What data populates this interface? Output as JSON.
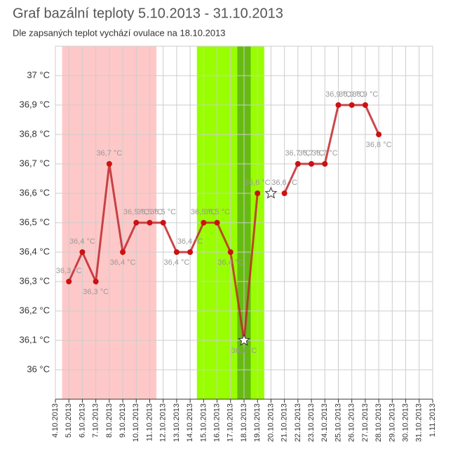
{
  "chart_data": {
    "type": "line",
    "title": "Graf bazální teploty 5.10.2013 - 31.10.2013",
    "subtitle": "Dle zapsaných teplot vychází ovulace na 18.10.2013",
    "categories": [
      "4.10.2013",
      "5.10.2013",
      "6.10.2013",
      "7.10.2013",
      "8.10.2013",
      "9.10.2013",
      "10.10.2013",
      "11.10.2013",
      "12.10.2013",
      "13.10.2013",
      "14.10.2013",
      "15.10.2013",
      "16.10.2013",
      "17.10.2013",
      "18.10.2013",
      "19.10.2013",
      "20.10.2013",
      "21.10.2013",
      "22.10.2013",
      "23.10.2013",
      "24.10.2013",
      "25.10.2013",
      "26.10.2013",
      "27.10.2013",
      "28.10.2013",
      "29.10.2013",
      "30.10.2013",
      "31.10.2013",
      "1.11.2013"
    ],
    "series": [
      {
        "color": "#c0282d",
        "values": [
          null,
          36.3,
          36.4,
          36.3,
          36.7,
          36.4,
          36.5,
          36.5,
          36.5,
          36.4,
          36.4,
          36.5,
          36.5,
          36.4,
          36.1,
          36.6,
          null,
          36.6,
          36.7,
          36.7,
          36.7,
          36.9,
          36.9,
          36.9,
          36.8,
          null,
          null,
          null,
          null
        ],
        "value_labels": [
          null,
          "36,3 °C",
          "36,4 °C",
          "36,3 °C",
          "36,7 °C",
          "36,4 °C",
          "36,5 °C",
          "36,5 °C",
          "36,5 °C",
          "36,4 °C",
          "36,4 °C",
          "36,5 °C",
          "36,5 °C",
          "36,4 °C",
          "36,1 °C",
          "36,6 °C",
          null,
          "36,6 °C",
          "36,7 °C",
          "36,7 °C",
          "36,7 °C",
          "36,9 °C",
          "36,9 °C",
          "36,9 °C",
          "36,8 °C",
          null,
          null,
          null,
          null
        ]
      }
    ],
    "star_markers": [
      {
        "category": 14,
        "value": 36.1
      },
      {
        "category": 16,
        "value": 36.6
      }
    ],
    "bands": [
      {
        "from": 1,
        "to": 7,
        "color": "#ffc8c8"
      },
      {
        "from": 11,
        "to": 15,
        "color": "#99ff00"
      },
      {
        "from": 14,
        "to": 14,
        "color": "#66bb11"
      }
    ],
    "ylim": [
      35.9,
      37.1
    ],
    "yticks": [
      {
        "value": 36,
        "label": "36 °C"
      },
      {
        "value": 36.1,
        "label": "36,1 °C"
      },
      {
        "value": 36.2,
        "label": "36,2 °C"
      },
      {
        "value": 36.3,
        "label": "36,3 °C"
      },
      {
        "value": 36.4,
        "label": "36,4 °C"
      },
      {
        "value": 36.5,
        "label": "36,5 °C"
      },
      {
        "value": 36.6,
        "label": "36,6 °C"
      },
      {
        "value": 36.7,
        "label": "36,7 °C"
      },
      {
        "value": 36.8,
        "label": "36,8 °C"
      },
      {
        "value": 36.9,
        "label": "36,9 °C"
      },
      {
        "value": 37,
        "label": "37 °C"
      }
    ],
    "grid": true
  }
}
